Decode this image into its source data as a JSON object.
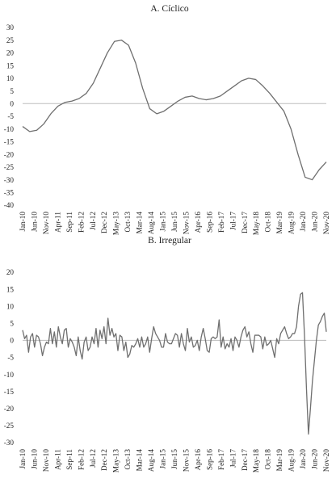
{
  "chart_data": [
    {
      "type": "line",
      "title": "A. Cíclico",
      "xlabel": "",
      "ylabel": "",
      "ylim": [
        -40,
        30
      ],
      "yticks": [
        30,
        25,
        20,
        15,
        10,
        5,
        0,
        -5,
        -10,
        -15,
        -20,
        -25,
        -30,
        -35,
        -40
      ],
      "grid": false,
      "legend": "none",
      "line_color": "#6f6f6f",
      "x_tick_labels": [
        "Jan-10",
        "Jun-10",
        "Nov-10",
        "Apr-11",
        "Sep-11",
        "Feb-12",
        "Jul-12",
        "Dec-12",
        "May-13",
        "Oct-13",
        "Mar-14",
        "Aug-14",
        "Jan-15",
        "Jun-15",
        "Nov-15",
        "Apr-16",
        "Sep-16",
        "Feb-17",
        "Jul-17",
        "Dec-17",
        "May-18",
        "Oct-18",
        "Mar-19",
        "Aug-19",
        "Jan-20",
        "Jun-20",
        "Nov-20"
      ],
      "series": [
        {
          "values": [
            -9,
            -11,
            -10.5,
            -8,
            -4,
            -1,
            0.5,
            1,
            2,
            4,
            8,
            14,
            20,
            24.5,
            25,
            23,
            16,
            6,
            -2,
            -4,
            -3,
            -1,
            1,
            2.5,
            3,
            2,
            1.5,
            2,
            3,
            5,
            7,
            9,
            10,
            9.5,
            7,
            4,
            0.5,
            -3,
            -10,
            -20,
            -29,
            -30,
            -26,
            -23
          ]
        }
      ]
    },
    {
      "type": "line",
      "title": "B. Irregular",
      "xlabel": "",
      "ylabel": "",
      "ylim": [
        -30,
        20
      ],
      "yticks": [
        20,
        15,
        10,
        5,
        0,
        -5,
        -10,
        -15,
        -20,
        -25,
        -30
      ],
      "grid": false,
      "legend": "none",
      "line_color": "#6f6f6f",
      "x_tick_labels": [
        "Jan-10",
        "Jun-10",
        "Nov-10",
        "Apr-11",
        "Sep-11",
        "Feb-12",
        "Jul-12",
        "Dec-12",
        "May-13",
        "Oct-13",
        "Mar-14",
        "Aug-14",
        "Jan-15",
        "Jun-15",
        "Nov-15",
        "Apr-16",
        "Sep-16",
        "Feb-17",
        "Jul-17",
        "Dec-17",
        "May-18",
        "Oct-18",
        "Mar-19",
        "Aug-19",
        "Jan-20",
        "Jun-20",
        "Nov-20"
      ],
      "series": [
        {
          "values": [
            3,
            0.5,
            1.5,
            -3.5,
            1,
            2,
            -2,
            1.5,
            1,
            -1,
            -4.5,
            -2,
            -0.5,
            -1,
            3.5,
            -1,
            2.5,
            -2,
            4,
            1,
            -1,
            3,
            3.5,
            -2,
            0.5,
            -0.5,
            -2,
            -4.5,
            1,
            -3,
            -5.5,
            -0.5,
            1,
            -3,
            -2,
            1,
            -1,
            3.5,
            -2,
            3,
            0.5,
            4,
            -1,
            6.5,
            1.5,
            3.5,
            1,
            2,
            -3,
            1.5,
            1,
            -3,
            -0.5,
            -5,
            -4,
            -1.5,
            -2,
            -1,
            0.5,
            -2,
            1,
            -2,
            -1,
            1,
            -3.5,
            0.5,
            4,
            2,
            1,
            0,
            -2,
            -2,
            2,
            -0.5,
            -1,
            -1,
            0.5,
            2,
            1.5,
            -2,
            2,
            -1,
            -3,
            3.5,
            -0.5,
            1,
            -2,
            -1.5,
            0,
            -3,
            1,
            3.5,
            0.5,
            -3,
            -3.5,
            0.5,
            1,
            0.5,
            1,
            6,
            -2,
            1,
            -2.5,
            -1,
            -2,
            0.5,
            -3,
            1,
            0,
            -2,
            1,
            3,
            4,
            1,
            2.5,
            -1,
            -3.5,
            1.5,
            1.5,
            1.5,
            1,
            -2.5,
            1,
            -1.5,
            -1,
            0,
            -2.5,
            -5,
            0.5,
            -1,
            2,
            3,
            4,
            2,
            0.5,
            1,
            2,
            2,
            4,
            10,
            13.5,
            14,
            1.5,
            -14,
            -27.5,
            -20,
            -12,
            -6,
            0,
            4.5,
            5.5,
            7,
            8,
            2.5
          ]
        }
      ]
    }
  ]
}
